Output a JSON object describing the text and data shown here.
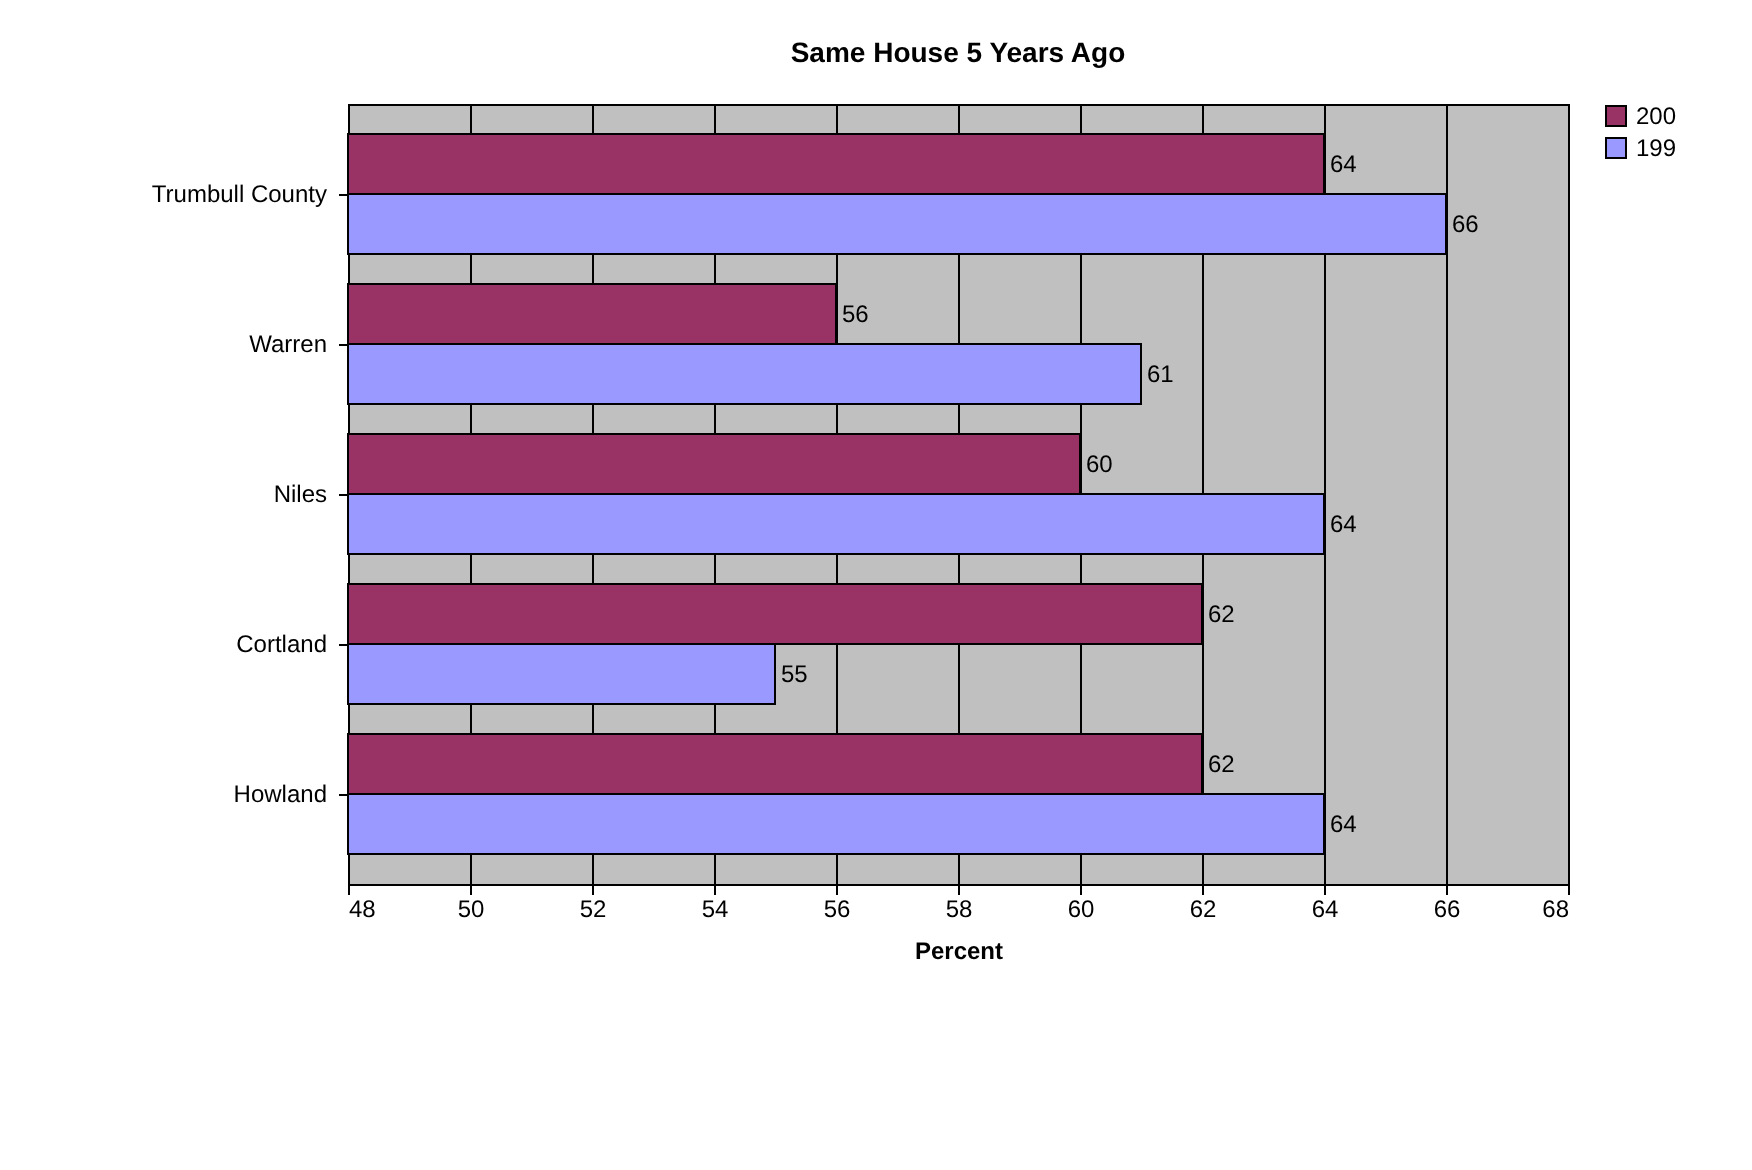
{
  "chart_data": {
    "type": "bar",
    "orientation": "horizontal",
    "title": "Same House 5 Years Ago",
    "xlabel": "Percent",
    "categories": [
      "Trumbull County",
      "Warren",
      "Niles",
      "Cortland",
      "Howland"
    ],
    "series": [
      {
        "name": "200",
        "color": "#993366",
        "values": [
          64,
          56,
          60,
          62,
          62
        ]
      },
      {
        "name": "199",
        "color": "#9999ff",
        "values": [
          66,
          61,
          64,
          55,
          64
        ]
      }
    ],
    "xlim": [
      48,
      68
    ],
    "xticks": [
      48,
      50,
      52,
      54,
      56,
      58,
      60,
      62,
      64,
      66,
      68
    ],
    "grid": "x",
    "legend": "right",
    "data_labels": true
  }
}
